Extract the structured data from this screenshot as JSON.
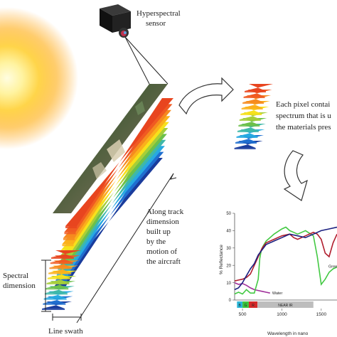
{
  "sensor": {
    "label_line1": "Hyperspectral",
    "label_line2": "sensor"
  },
  "pixel_note": {
    "line1": "Each pixel contai",
    "line2": "spectrum that is u",
    "line3": "the materials pres"
  },
  "along_track": {
    "line1": "Along track",
    "line2": "dimension",
    "line3": "built up",
    "line4": "by the",
    "line5": "motion of",
    "line6": "the aircraft"
  },
  "spectral_dimension": {
    "line1": "Spectral",
    "line2": "dimension"
  },
  "line_swath": "Line swath",
  "band_colors": [
    "#1a3c9c",
    "#1f6fd0",
    "#27a9e1",
    "#3fb8a8",
    "#6cc04a",
    "#a6ce39",
    "#f7e11b",
    "#fbb01b",
    "#f68a1e",
    "#f05a22",
    "#e8451f"
  ],
  "chart_data": {
    "type": "line",
    "xlabel": "Wavelength in nano",
    "ylabel": "% Reflectance",
    "xlim": [
      400,
      1700
    ],
    "ylim": [
      0,
      50
    ],
    "xticks": [
      "500",
      "1000",
      "1500"
    ],
    "yticks": [
      "0",
      "10",
      "20",
      "30",
      "40",
      "50"
    ],
    "band_labels": [
      "B",
      "G",
      "R",
      "NEAR IR"
    ],
    "band_colors": [
      "#29b6d8",
      "#3cc43c",
      "#d42a2a",
      "#bdbdbd"
    ],
    "series": [
      {
        "name": "Water",
        "color": "#a0309a",
        "x": [
          400,
          450,
          500,
          550,
          600,
          650,
          700,
          750,
          800,
          850
        ],
        "y": [
          10,
          9,
          9.5,
          8.5,
          7,
          6,
          5.5,
          5,
          4.5,
          4
        ]
      },
      {
        "name": "Gree",
        "color": "#43c943",
        "x": [
          400,
          450,
          500,
          550,
          600,
          650,
          700,
          720,
          740,
          760,
          800,
          900,
          1000,
          1050,
          1100,
          1150,
          1200,
          1300,
          1400,
          1450,
          1500,
          1550,
          1600,
          1650,
          1700
        ],
        "y": [
          3.5,
          4.5,
          3.5,
          6,
          4,
          4,
          12,
          24,
          29,
          31,
          34,
          38,
          41,
          42,
          40,
          39,
          38,
          40,
          37,
          25,
          9,
          12,
          16,
          18,
          19
        ]
      },
      {
        "name": "",
        "color": "#b01e2e",
        "x": [
          400,
          450,
          500,
          550,
          600,
          650,
          700,
          750,
          800,
          900,
          1000,
          1100,
          1150,
          1200,
          1300,
          1400,
          1450,
          1500,
          1550,
          1600,
          1650,
          1700
        ],
        "y": [
          11,
          11.5,
          12,
          13,
          15,
          20,
          25,
          30,
          33,
          35,
          37,
          38,
          36,
          35,
          37,
          39,
          38,
          35,
          27,
          25,
          33,
          38
        ]
      },
      {
        "name": "",
        "color": "#1b2080",
        "x": [
          400,
          450,
          500,
          550,
          600,
          650,
          700,
          800,
          900,
          1000,
          1100,
          1200,
          1300,
          1400,
          1500,
          1600,
          1700
        ],
        "y": [
          6,
          7,
          10,
          14,
          18,
          21,
          26,
          32,
          34,
          36,
          38,
          37,
          36,
          38,
          40,
          41,
          42
        ]
      }
    ]
  }
}
